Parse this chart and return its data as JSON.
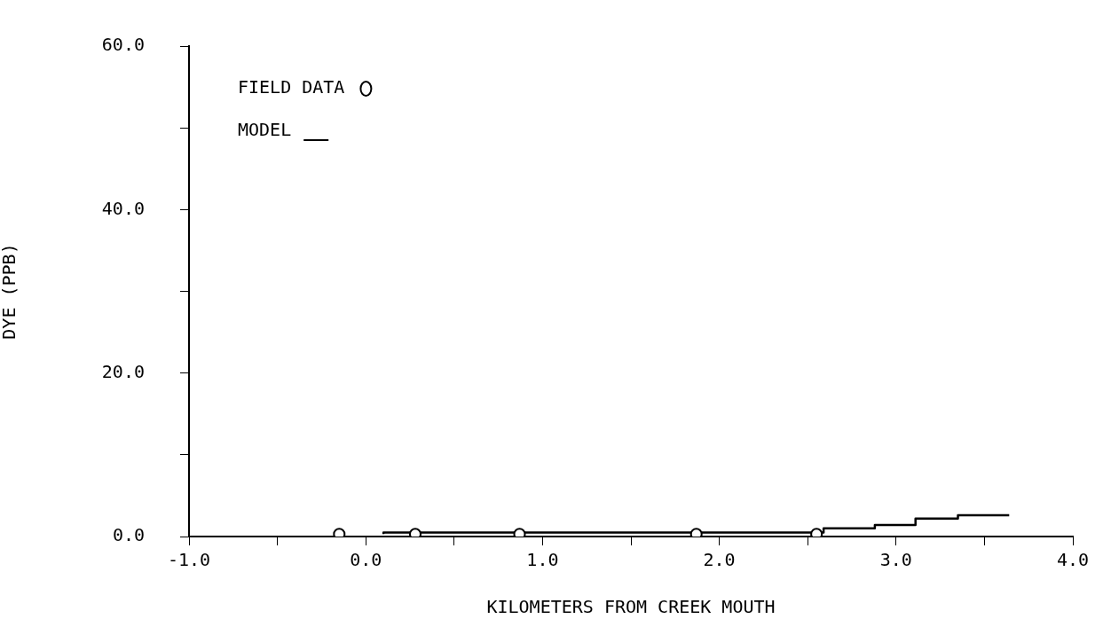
{
  "chart_data": {
    "type": "line",
    "xlabel": "KILOMETERS FROM CREEK MOUTH",
    "ylabel": "DYE (PPB)",
    "xlim": [
      -1,
      4
    ],
    "ylim": [
      0,
      60
    ],
    "xticks": [
      {
        "value": -1,
        "label": "-1.0"
      },
      {
        "value": -0.5,
        "label": null
      },
      {
        "value": 0,
        "label": "0.0"
      },
      {
        "value": 0.5,
        "label": null
      },
      {
        "value": 1,
        "label": "1.0"
      },
      {
        "value": 1.5,
        "label": null
      },
      {
        "value": 2,
        "label": "2.0"
      },
      {
        "value": 2.5,
        "label": null
      },
      {
        "value": 3,
        "label": "3.0"
      },
      {
        "value": 3.5,
        "label": null
      },
      {
        "value": 4,
        "label": "4.0"
      }
    ],
    "yticks": [
      {
        "value": 0,
        "label": "0.0"
      },
      {
        "value": 10,
        "label": null
      },
      {
        "value": 20,
        "label": "20.0"
      },
      {
        "value": 30,
        "label": null
      },
      {
        "value": 40,
        "label": "40.0"
      },
      {
        "value": 50,
        "label": null
      },
      {
        "value": 60,
        "label": "60.0"
      }
    ],
    "legend": "top left",
    "series": [
      {
        "name": "FIELD DATA",
        "type": "scatter",
        "marker": "circle",
        "color": "#000000",
        "x": [
          -0.15,
          0.28,
          0.87,
          1.87,
          2.55
        ],
        "values": [
          0.3,
          0.3,
          0.3,
          0.3,
          0.3
        ]
      },
      {
        "name": "MODEL",
        "type": "step",
        "marker": "none",
        "color": "#000000",
        "x": [
          0.1,
          2.59,
          2.88,
          3.11,
          3.35,
          3.46,
          3.64
        ],
        "values": [
          0.3,
          0.5,
          1.0,
          1.4,
          2.2,
          2.6,
          2.6
        ]
      }
    ]
  }
}
